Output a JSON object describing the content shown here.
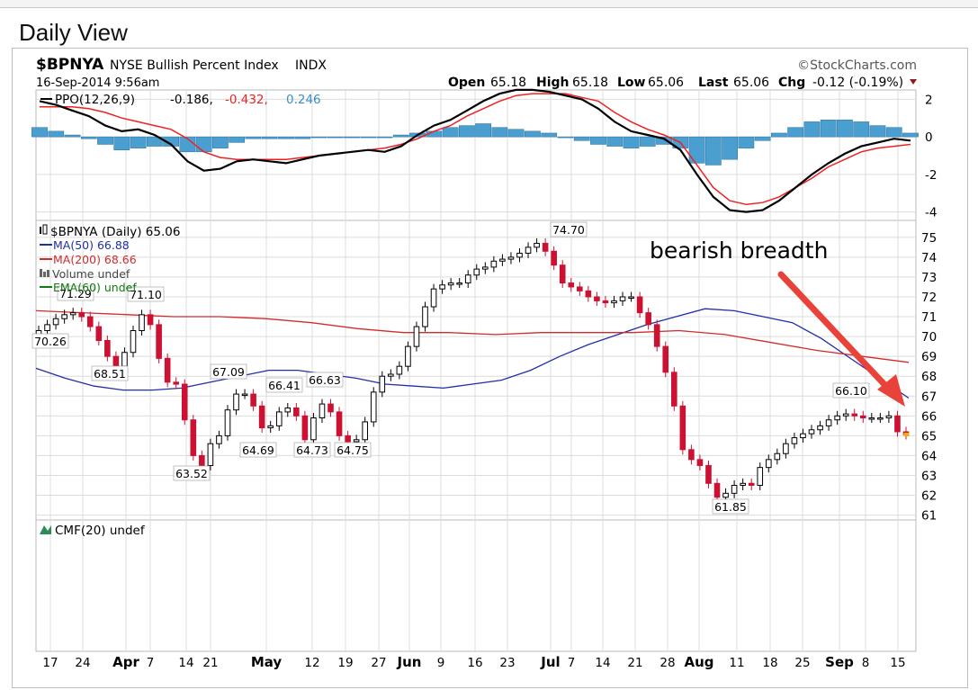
{
  "page": {
    "view_title": "Daily View"
  },
  "header": {
    "symbol": "$BPNYA",
    "name": "NYSE Bullish Percent Index",
    "exchange": "INDX",
    "date": "16-Sep-2014 9:56am",
    "watermark": "©StockCharts.com",
    "open_label": "Open",
    "open": "65.18",
    "high_label": "High",
    "high": "65.18",
    "low_label": "Low",
    "low": "65.06",
    "last_label": "Last",
    "last": "65.06",
    "chg_label": "Chg",
    "chg": "-0.12 (-0.19%)"
  },
  "ppo_legend": {
    "label": "PPO(12,26,9)",
    "ppo": "-0.186,",
    "signal": "-0.432,",
    "hist": "0.246"
  },
  "main_legend": {
    "price": "$BPNYA (Daily) 65.06",
    "ma50": "MA(50) 66.88",
    "ma200": "MA(200) 68.66",
    "volume": "Volume undef",
    "ema60": "EMA(60) undef"
  },
  "cmf_legend": "CMF(20) undef",
  "annotation": "bearish breadth",
  "colors": {
    "up_candle": "#000000",
    "down_candle": "#cc1133",
    "ma50": "#1f2fa6",
    "ma200": "#d22b2b",
    "ppo_line": "#000000",
    "ppo_signal": "#ee2222",
    "histogram": "#4a9ed0",
    "arrow": "#e8423a",
    "grid": "#dcdcdc",
    "volume_icon": "#666666",
    "ema_icon": "#117a11",
    "cmf_icon": "#2e8b57"
  },
  "chart_data": [
    {
      "type": "line",
      "title": "PPO(12,26,9)",
      "y_ticks": [
        2,
        0,
        -2,
        -4
      ],
      "ylim": [
        -4.4,
        2.4
      ],
      "x_labels": [
        "17",
        "24",
        "Apr",
        "7",
        "14",
        "21",
        "May",
        "12",
        "19",
        "27",
        "Jun",
        "9",
        "16",
        "23",
        "Jul",
        "7",
        "14",
        "21",
        "28",
        "Aug",
        "11",
        "18",
        "25",
        "Sep",
        "8",
        "15"
      ],
      "x_label_bold": [
        "Apr",
        "May",
        "Jun",
        "Jul",
        "Aug",
        "Sep"
      ],
      "series": [
        {
          "name": "PPO",
          "values": [
            1.9,
            1.7,
            1.4,
            1.1,
            0.6,
            0.3,
            0.4,
            0.1,
            -0.4,
            -1.3,
            -1.8,
            -1.7,
            -1.3,
            -1.2,
            -1.3,
            -1.4,
            -1.2,
            -1.0,
            -0.9,
            -0.8,
            -0.7,
            -0.8,
            -0.5,
            0.1,
            0.6,
            0.9,
            1.4,
            1.9,
            2.3,
            2.5,
            2.5,
            2.4,
            2.2,
            2.0,
            1.5,
            0.8,
            0.3,
            0.1,
            -0.1,
            -0.7,
            -2.0,
            -3.2,
            -3.9,
            -4.0,
            -3.9,
            -3.4,
            -2.7,
            -2.0,
            -1.4,
            -0.9,
            -0.5,
            -0.3,
            -0.1,
            -0.2
          ]
        },
        {
          "name": "Signal",
          "values": [
            1.6,
            1.6,
            1.6,
            1.5,
            1.3,
            1.0,
            0.8,
            0.6,
            0.4,
            -0.1,
            -0.8,
            -1.1,
            -1.2,
            -1.2,
            -1.2,
            -1.2,
            -1.1,
            -1.0,
            -0.9,
            -0.8,
            -0.7,
            -0.6,
            -0.4,
            -0.1,
            0.3,
            0.6,
            1.1,
            1.5,
            1.9,
            2.2,
            2.3,
            2.3,
            2.3,
            2.1,
            1.9,
            1.3,
            0.8,
            0.4,
            0.1,
            -0.3,
            -1.5,
            -2.7,
            -3.4,
            -3.6,
            -3.5,
            -3.2,
            -2.7,
            -2.2,
            -1.6,
            -1.2,
            -0.8,
            -0.6,
            -0.5,
            -0.4
          ]
        },
        {
          "name": "Histogram",
          "values": [
            0.5,
            0.3,
            0.1,
            -0.1,
            -0.4,
            -0.7,
            -0.6,
            -0.5,
            -0.5,
            -0.8,
            -0.8,
            -0.6,
            -0.3,
            -0.1,
            -0.1,
            -0.1,
            -0.1,
            0,
            0,
            0,
            0,
            0,
            0.1,
            0.2,
            0.3,
            0.5,
            0.6,
            0.7,
            0.5,
            0.4,
            0.3,
            0.2,
            0,
            -0.2,
            -0.4,
            -0.5,
            -0.6,
            -0.5,
            -0.4,
            -0.6,
            -1.4,
            -1.5,
            -1.2,
            -0.6,
            -0.2,
            0.2,
            0.5,
            0.8,
            0.9,
            0.9,
            0.8,
            0.6,
            0.5,
            0.2
          ]
        }
      ]
    },
    {
      "type": "candlestick",
      "title": "$BPNYA (Daily) 65.06",
      "ylim": [
        60.8,
        75.4
      ],
      "y_ticks": [
        75,
        74,
        73,
        72,
        71,
        70,
        69,
        68,
        67,
        66,
        65,
        64,
        63,
        62,
        61
      ],
      "x_labels": [
        "17",
        "24",
        "Apr",
        "7",
        "14",
        "21",
        "May",
        "12",
        "19",
        "27",
        "Jun",
        "9",
        "16",
        "23",
        "Jul",
        "7",
        "14",
        "21",
        "28",
        "Aug",
        "11",
        "18",
        "25",
        "Sep",
        "8",
        "15"
      ],
      "close": [
        70.3,
        70.6,
        70.9,
        71.1,
        71.2,
        71.0,
        70.5,
        69.8,
        69.0,
        68.5,
        69.2,
        70.3,
        71.1,
        70.6,
        68.9,
        67.7,
        67.6,
        65.8,
        64.0,
        63.5,
        64.6,
        65.0,
        66.3,
        67.1,
        67.1,
        66.5,
        65.4,
        65.5,
        66.2,
        66.4,
        66.0,
        64.8,
        65.9,
        66.6,
        66.2,
        65.0,
        64.7,
        64.8,
        65.7,
        67.2,
        68.0,
        68.1,
        68.5,
        69.5,
        70.5,
        71.5,
        72.4,
        72.6,
        72.7,
        72.7,
        73.1,
        73.4,
        73.5,
        73.8,
        73.9,
        74.0,
        74.2,
        74.5,
        74.7,
        74.3,
        73.6,
        72.7,
        72.5,
        72.3,
        72.0,
        71.8,
        71.7,
        71.8,
        72.0,
        72.0,
        71.2,
        70.6,
        69.5,
        68.2,
        66.5,
        64.3,
        63.8,
        63.5,
        62.6,
        61.9,
        62.1,
        62.5,
        62.6,
        62.5,
        63.4,
        63.8,
        64.1,
        64.6,
        64.9,
        65.1,
        65.3,
        65.5,
        65.8,
        66.0,
        66.1,
        66.0,
        65.9,
        65.9,
        65.9,
        66.0,
        65.2,
        65.06
      ],
      "annotations": [
        {
          "text": "70.26",
          "value": 70.26
        },
        {
          "text": "71.29",
          "value": 71.29
        },
        {
          "text": "68.51",
          "value": 68.51
        },
        {
          "text": "71.10",
          "value": 71.1
        },
        {
          "text": "63.52",
          "value": 63.52
        },
        {
          "text": "67.09",
          "value": 67.09
        },
        {
          "text": "64.69",
          "value": 64.69
        },
        {
          "text": "66.41",
          "value": 66.41
        },
        {
          "text": "64.73",
          "value": 64.73
        },
        {
          "text": "66.63",
          "value": 66.63
        },
        {
          "text": "64.75",
          "value": 64.75
        },
        {
          "text": "74.70",
          "value": 74.7
        },
        {
          "text": "61.85",
          "value": 61.85
        },
        {
          "text": "66.10",
          "value": 66.1
        }
      ],
      "series": [
        {
          "name": "MA(50) 66.88",
          "values": [
            68.4,
            67.9,
            67.5,
            67.3,
            67.3,
            67.4,
            67.7,
            68.0,
            68.3,
            68.3,
            68.1,
            67.9,
            67.6,
            67.5,
            67.4,
            67.6,
            67.8,
            68.3,
            69.0,
            69.6,
            70.1,
            70.6,
            71.0,
            71.4,
            71.3,
            71.0,
            70.7,
            69.9,
            68.9,
            67.9,
            66.9
          ]
        },
        {
          "name": "MA(200) 68.66",
          "values": [
            71.3,
            71.2,
            71.1,
            71.0,
            71.0,
            70.9,
            70.7,
            70.4,
            70.2,
            70.2,
            70.1,
            70.2,
            70.2,
            70.2,
            70.3,
            70.1,
            69.7,
            69.3,
            69.0,
            68.7
          ]
        }
      ]
    },
    {
      "type": "line",
      "title": "CMF(20) undef",
      "series": []
    }
  ]
}
